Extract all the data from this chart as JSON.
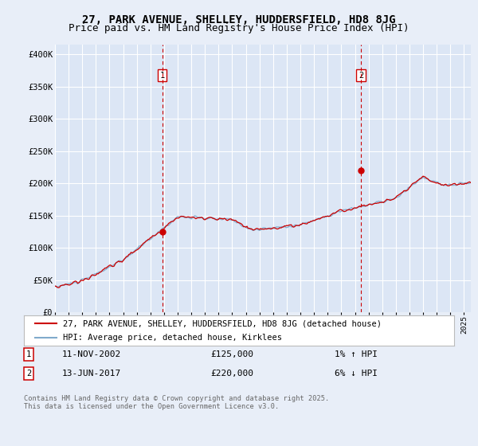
{
  "title": "27, PARK AVENUE, SHELLEY, HUDDERSFIELD, HD8 8JG",
  "subtitle": "Price paid vs. HM Land Registry's House Price Index (HPI)",
  "ylabel_ticks": [
    "£0",
    "£50K",
    "£100K",
    "£150K",
    "£200K",
    "£250K",
    "£300K",
    "£350K",
    "£400K"
  ],
  "ytick_values": [
    0,
    50000,
    100000,
    150000,
    200000,
    250000,
    300000,
    350000,
    400000
  ],
  "ylim": [
    0,
    415000
  ],
  "xlim_start": 1995.0,
  "xlim_end": 2025.5,
  "bg_color": "#e8eef8",
  "plot_bg": "#dce6f5",
  "grid_color": "#ffffff",
  "red_color": "#cc0000",
  "blue_color": "#80aacc",
  "sale1_x": 2002.87,
  "sale1_y": 125000,
  "sale2_x": 2017.45,
  "sale2_y": 220000,
  "legend_label_red": "27, PARK AVENUE, SHELLEY, HUDDERSFIELD, HD8 8JG (detached house)",
  "legend_label_blue": "HPI: Average price, detached house, Kirklees",
  "annotation1_date": "11-NOV-2002",
  "annotation1_price": "£125,000",
  "annotation1_hpi": "1% ↑ HPI",
  "annotation2_date": "13-JUN-2017",
  "annotation2_price": "£220,000",
  "annotation2_hpi": "6% ↓ HPI",
  "footer": "Contains HM Land Registry data © Crown copyright and database right 2025.\nThis data is licensed under the Open Government Licence v3.0.",
  "title_fontsize": 10,
  "subtitle_fontsize": 9
}
